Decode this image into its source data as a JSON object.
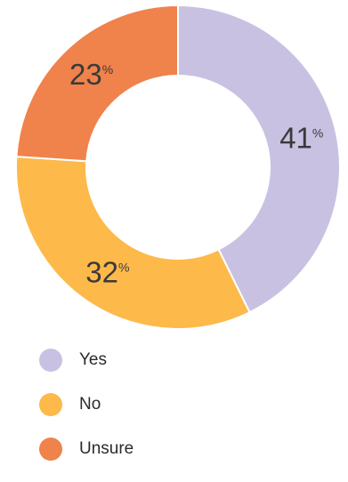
{
  "chart_data": {
    "type": "pie",
    "variant": "donut",
    "categories": [
      "Yes",
      "No",
      "Unsure"
    ],
    "values": [
      41,
      32,
      23
    ],
    "unit": "%",
    "colors": [
      "#c9c1e2",
      "#fdb94a",
      "#f0824b"
    ],
    "data_labels": [
      "41",
      "32",
      "23"
    ],
    "legend": {
      "placement": "bottom-left",
      "entries": [
        "Yes",
        "No",
        "Unsure"
      ]
    }
  }
}
